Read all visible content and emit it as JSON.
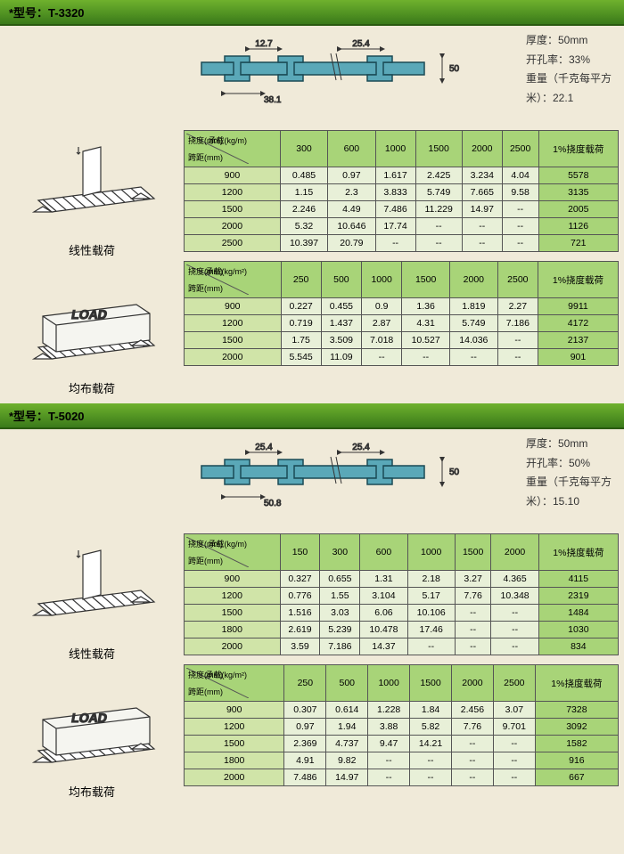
{
  "models": [
    {
      "title": "*型号：T-3320",
      "profile": {
        "top_dim1": "12.7",
        "top_dim2": "25.4",
        "bottom_dim": "38.1",
        "height": "50"
      },
      "specs": [
        {
          "label": "厚度",
          "value": "50mm"
        },
        {
          "label": "开孔率",
          "value": "33%"
        },
        {
          "label": "重量（千克每平方米）",
          "value": "22.1"
        }
      ],
      "load_figs": [
        "线性载荷",
        "均布载荷"
      ],
      "tables": [
        {
          "corner": {
            "top": "挠度(mm)",
            "right": "承载(kg/m)",
            "bottom": "跨距(mm)"
          },
          "cols": [
            "300",
            "600",
            "1000",
            "1500",
            "2000",
            "2500"
          ],
          "last_col": "1%挠度载荷",
          "rows": [
            {
              "h": "900",
              "c": [
                "0.485",
                "0.97",
                "1.617",
                "2.425",
                "3.234",
                "4.04"
              ],
              "l": "5578"
            },
            {
              "h": "1200",
              "c": [
                "1.15",
                "2.3",
                "3.833",
                "5.749",
                "7.665",
                "9.58"
              ],
              "l": "3135"
            },
            {
              "h": "1500",
              "c": [
                "2.246",
                "4.49",
                "7.486",
                "11.229",
                "14.97",
                "--"
              ],
              "l": "2005"
            },
            {
              "h": "2000",
              "c": [
                "5.32",
                "10.646",
                "17.74",
                "--",
                "--",
                "--"
              ],
              "l": "1126"
            },
            {
              "h": "2500",
              "c": [
                "10.397",
                "20.79",
                "--",
                "--",
                "--",
                "--"
              ],
              "l": "721"
            }
          ]
        },
        {
          "corner": {
            "top": "挠度(mm)",
            "right": "承载(kg/m²)",
            "bottom": "跨距(mm)"
          },
          "cols": [
            "250",
            "500",
            "1000",
            "1500",
            "2000",
            "2500"
          ],
          "last_col": "1%挠度载荷",
          "rows": [
            {
              "h": "900",
              "c": [
                "0.227",
                "0.455",
                "0.9",
                "1.36",
                "1.819",
                "2.27"
              ],
              "l": "9911"
            },
            {
              "h": "1200",
              "c": [
                "0.719",
                "1.437",
                "2.87",
                "4.31",
                "5.749",
                "7.186"
              ],
              "l": "4172"
            },
            {
              "h": "1500",
              "c": [
                "1.75",
                "3.509",
                "7.018",
                "10.527",
                "14.036",
                "--"
              ],
              "l": "2137"
            },
            {
              "h": "2000",
              "c": [
                "5.545",
                "11.09",
                "--",
                "--",
                "--",
                "--"
              ],
              "l": "901"
            }
          ]
        }
      ]
    },
    {
      "title": "*型号：T-5020",
      "profile": {
        "top_dim1": "25.4",
        "top_dim2": "25.4",
        "bottom_dim": "50.8",
        "height": "50"
      },
      "specs": [
        {
          "label": "厚度",
          "value": "50mm"
        },
        {
          "label": "开孔率",
          "value": "50%"
        },
        {
          "label": "重量（千克每平方米）",
          "value": "15.10"
        }
      ],
      "load_figs": [
        "线性载荷",
        "均布载荷"
      ],
      "tables": [
        {
          "corner": {
            "top": "挠度(mm)",
            "right": "承载(kg/m)",
            "bottom": "跨距(mm)"
          },
          "cols": [
            "150",
            "300",
            "600",
            "1000",
            "1500",
            "2000"
          ],
          "last_col": "1%挠度载荷",
          "rows": [
            {
              "h": "900",
              "c": [
                "0.327",
                "0.655",
                "1.31",
                "2.18",
                "3.27",
                "4.365"
              ],
              "l": "4115"
            },
            {
              "h": "1200",
              "c": [
                "0.776",
                "1.55",
                "3.104",
                "5.17",
                "7.76",
                "10.348"
              ],
              "l": "2319"
            },
            {
              "h": "1500",
              "c": [
                "1.516",
                "3.03",
                "6.06",
                "10.106",
                "--",
                "--"
              ],
              "l": "1484"
            },
            {
              "h": "1800",
              "c": [
                "2.619",
                "5.239",
                "10.478",
                "17.46",
                "--",
                "--"
              ],
              "l": "1030"
            },
            {
              "h": "2000",
              "c": [
                "3.59",
                "7.186",
                "14.37",
                "--",
                "--",
                "--"
              ],
              "l": "834"
            }
          ]
        },
        {
          "corner": {
            "top": "挠度(mm)",
            "right": "承载(kg/m²)",
            "bottom": "跨距(mm)"
          },
          "cols": [
            "250",
            "500",
            "1000",
            "1500",
            "2000",
            "2500"
          ],
          "last_col": "1%挠度载荷",
          "rows": [
            {
              "h": "900",
              "c": [
                "0.307",
                "0.614",
                "1.228",
                "1.84",
                "2.456",
                "3.07"
              ],
              "l": "7328"
            },
            {
              "h": "1200",
              "c": [
                "0.97",
                "1.94",
                "3.88",
                "5.82",
                "7.76",
                "9.701"
              ],
              "l": "3092"
            },
            {
              "h": "1500",
              "c": [
                "2.369",
                "4.737",
                "9.47",
                "14.21",
                "--",
                "--"
              ],
              "l": "1582"
            },
            {
              "h": "1800",
              "c": [
                "4.91",
                "9.82",
                "--",
                "--",
                "--",
                "--"
              ],
              "l": "916"
            },
            {
              "h": "2000",
              "c": [
                "7.486",
                "14.97",
                "--",
                "--",
                "--",
                "--"
              ],
              "l": "667"
            }
          ]
        }
      ]
    }
  ],
  "colors": {
    "beam_fill": "#5aa8b8",
    "beam_stroke": "#1a4a55",
    "hdr_bg": "#a8d478",
    "cell_bg": "#e8f0d8"
  }
}
